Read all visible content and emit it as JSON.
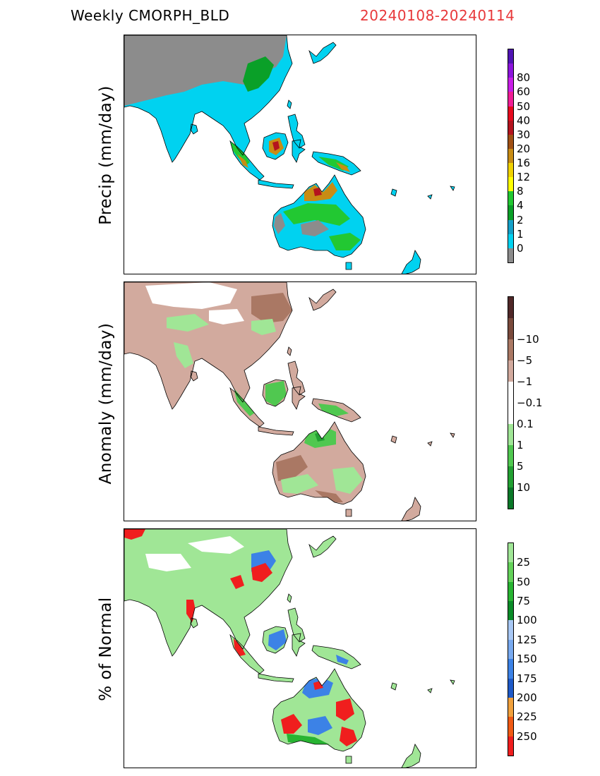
{
  "header": {
    "title": "Weekly CMORPH_BLD",
    "date_range": "20240108-20240114"
  },
  "colors": {
    "date_range": "#e8393b",
    "land_missing": "#8c8c8c",
    "coast": "#000000"
  },
  "panels": [
    {
      "id": "precip",
      "ylabel": "Precip (mm/day)",
      "land_default": "#00d2f0",
      "colorbar": {
        "colors": [
          "#8c8c8c",
          "#00d2f0",
          "#14a0c8",
          "#0aa028",
          "#22c832",
          "#ffff00",
          "#f0d200",
          "#c88c14",
          "#a05014",
          "#b4141e",
          "#e60a1e",
          "#f01e96",
          "#c81ee6",
          "#8c14dc",
          "#5014b4"
        ],
        "labels": [
          "0",
          "1",
          "2",
          "4",
          "8",
          "12",
          "16",
          "20",
          "30",
          "40",
          "50",
          "60",
          "80"
        ]
      }
    },
    {
      "id": "anomaly",
      "ylabel": "Anomaly (mm/day)",
      "land_default": "#d2aa9e",
      "colorbar": {
        "colors": [
          "#0a7828",
          "#22a032",
          "#50c850",
          "#a0e696",
          "#ffffff",
          "#ffffff",
          "#d2aa9e",
          "#aa7864",
          "#7a4a3c",
          "#502828"
        ],
        "labels": [
          "10",
          "5",
          "1",
          "0.1",
          "−0.1",
          "−1",
          "−5",
          "−10"
        ]
      }
    },
    {
      "id": "pct",
      "ylabel": "% of Normal",
      "land_default": "#a0e696",
      "colorbar": {
        "colors": [
          "#f01e1e",
          "#f05a14",
          "#f0a03c",
          "#1e5ac8",
          "#3c82e6",
          "#78aaf0",
          "#a8c8f5",
          "#0a8c28",
          "#28b432",
          "#64d25a",
          "#a0e696"
        ],
        "labels": [
          "250",
          "225",
          "200",
          "175",
          "150",
          "125",
          "100",
          "75",
          "50",
          "25"
        ]
      }
    }
  ]
}
